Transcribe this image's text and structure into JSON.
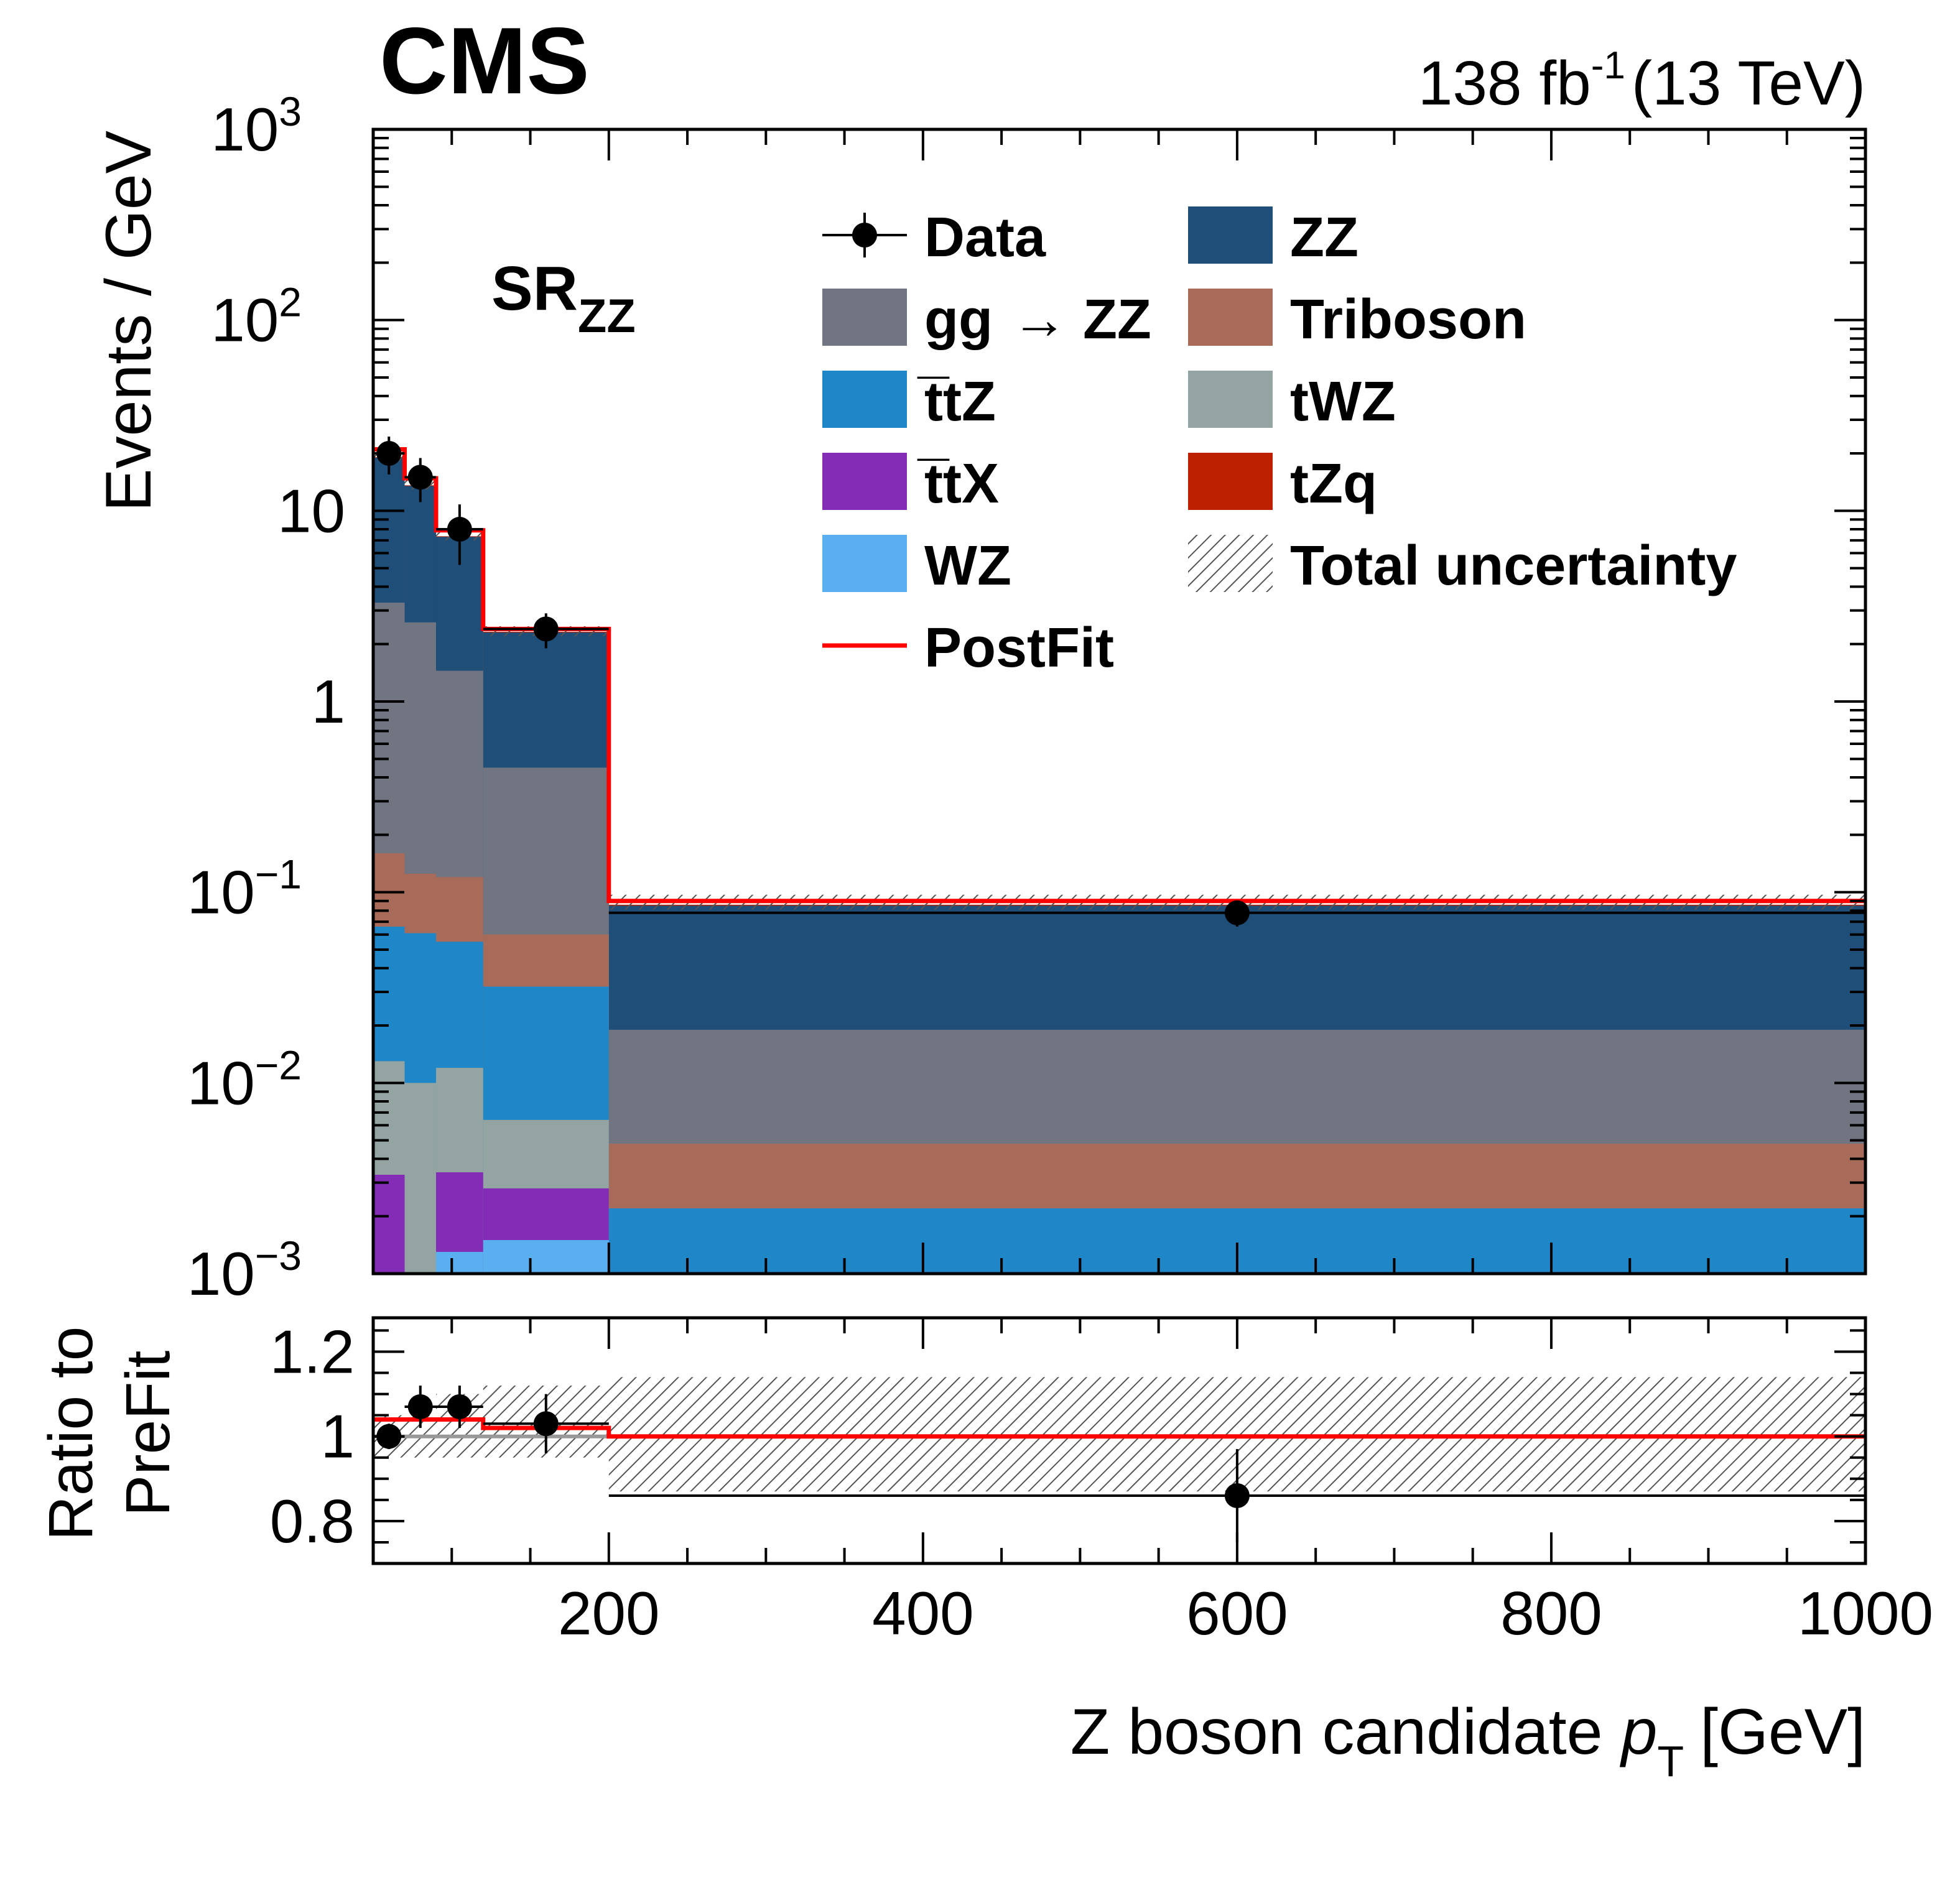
{
  "chart_data": {
    "type": "bar",
    "experiment": "CMS",
    "luminosity": "138 fb",
    "luminosity_exp": "-1",
    "energy": "(13 TeV)",
    "region": "SR",
    "region_sub": "ZZ",
    "xlabel": "Z boson candidate",
    "xlabel_var": "p",
    "xlabel_var_sub": "T",
    "xlabel_unit": "[GeV]",
    "ylabel": "Events / GeV",
    "ratio_ylabel_line1": "Ratio to",
    "ratio_ylabel_line2": "PreFit",
    "xlim": [
      50,
      1000
    ],
    "ylim": [
      0.001,
      1000
    ],
    "ylog": true,
    "ratio_ylim": [
      0.7,
      1.28
    ],
    "bin_edges": [
      50,
      70,
      90,
      120,
      200,
      1000
    ],
    "xticks": [
      200,
      400,
      600,
      800,
      1000
    ],
    "xtick_labels": [
      "200",
      "400",
      "600",
      "800",
      "1000"
    ],
    "yticks": [
      {
        "value": 1000,
        "base": "10",
        "exp": "3"
      },
      {
        "value": 100,
        "base": "10",
        "exp": "2"
      },
      {
        "value": 10,
        "base": "10",
        "exp": ""
      },
      {
        "value": 1,
        "base": "1",
        "exp": ""
      },
      {
        "value": 0.1,
        "base": "10",
        "exp": "−1"
      },
      {
        "value": 0.01,
        "base": "10",
        "exp": "−2"
      },
      {
        "value": 0.001,
        "base": "10",
        "exp": "−3"
      }
    ],
    "ratio_yticks": [
      1.2,
      1.0,
      0.8
    ],
    "ratio_ytick_labels": [
      "1.2",
      "1",
      "0.8"
    ],
    "stack_order": [
      "WZ",
      "t̅tX",
      "tWZ",
      "t̅tZ",
      "Triboson",
      "gg → ZZ",
      "ZZ",
      "tZq"
    ],
    "stack_cumulative": [
      {
        "name": "WZ",
        "color": "#5aaff0",
        "values": [
          0.0008,
          0.0008,
          0.0013,
          0.0015,
          0.0008
        ]
      },
      {
        "name": "t̅tX",
        "color": "#832db6",
        "values": [
          0.0033,
          0.0008,
          0.0034,
          0.0028,
          0.0008
        ]
      },
      {
        "name": "tWZ",
        "color": "#94a4a2",
        "values": [
          0.013,
          0.01,
          0.012,
          0.0064,
          0.0008
        ]
      },
      {
        "name": "t̅tZ",
        "color": "#1f87c8",
        "values": [
          0.066,
          0.061,
          0.055,
          0.032,
          0.0022
        ]
      },
      {
        "name": "Triboson",
        "color": "#a96b59",
        "values": [
          0.16,
          0.125,
          0.12,
          0.06,
          0.0048
        ]
      },
      {
        "name": "gg → ZZ",
        "color": "#717581",
        "values": [
          3.3,
          2.6,
          1.45,
          0.45,
          0.019
        ]
      },
      {
        "name": "ZZ",
        "color": "#1f4e79",
        "values": [
          19.0,
          13.5,
          7.3,
          2.3,
          0.085
        ]
      },
      {
        "name": "tZq",
        "color": "#bd1f01",
        "values": [
          19.1,
          13.6,
          7.35,
          2.32,
          0.086
        ]
      }
    ],
    "uncertainty_band": {
      "lower": [
        18.2,
        12.9,
        7.0,
        2.2,
        0.081
      ],
      "upper": [
        20.3,
        14.5,
        7.9,
        2.48,
        0.097
      ]
    },
    "postfit": {
      "name": "PostFit",
      "color": "#ff0000",
      "values": [
        21.0,
        14.8,
        7.9,
        2.4,
        0.09
      ]
    },
    "data": {
      "name": "Data",
      "x": [
        60,
        80,
        105,
        160,
        600
      ],
      "y": [
        20.0,
        15.0,
        8.0,
        2.4,
        0.078
      ],
      "xerr": [
        10,
        10,
        15,
        40,
        400
      ],
      "yerr": [
        4.5,
        3.9,
        2.8,
        0.5,
        0.012
      ]
    },
    "ratio": {
      "data_x": [
        60,
        80,
        105,
        160,
        600
      ],
      "data_y": [
        1.0,
        1.07,
        1.07,
        1.03,
        0.86
      ],
      "data_yerr": [
        0.03,
        0.05,
        0.05,
        0.07,
        0.11
      ],
      "postfit": [
        1.04,
        1.04,
        1.04,
        1.02,
        1.0
      ],
      "unc_lower": [
        0.95,
        0.95,
        0.95,
        0.95,
        0.87
      ],
      "unc_upper": [
        1.05,
        1.05,
        1.1,
        1.12,
        1.14
      ]
    },
    "legend": {
      "placement": "top-right",
      "col1": [
        {
          "label": "Data",
          "kind": "data"
        },
        {
          "label": "gg",
          "label2": "→ ZZ",
          "kind": "fill",
          "color": "#717581"
        },
        {
          "label": "t̅tZ",
          "kind": "fill",
          "color": "#1f87c8"
        },
        {
          "label": "t̅tX",
          "kind": "fill",
          "color": "#832db6"
        },
        {
          "label": "WZ",
          "kind": "fill",
          "color": "#5aaff0"
        },
        {
          "label": "PostFit",
          "kind": "line",
          "color": "#ff0000"
        }
      ],
      "col2": [
        {
          "label": "ZZ",
          "kind": "fill",
          "color": "#1f4e79"
        },
        {
          "label": "Triboson",
          "kind": "fill",
          "color": "#a96b59"
        },
        {
          "label": "tWZ",
          "kind": "fill",
          "color": "#94a4a2"
        },
        {
          "label": "tZq",
          "kind": "fill",
          "color": "#bd1f01"
        },
        {
          "label": "Total uncertainty",
          "kind": "hatch"
        }
      ]
    }
  }
}
